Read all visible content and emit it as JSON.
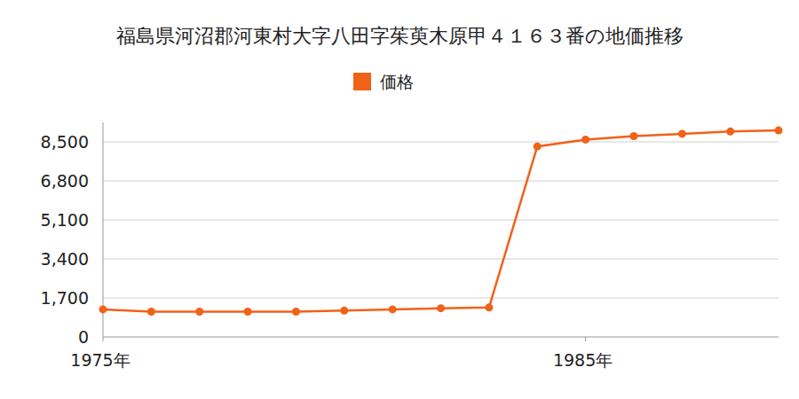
{
  "chart_data": {
    "type": "line",
    "title": "福島県河沼郡河東村大字八田字茱萸木原甲４１６３番の地価推移",
    "x": [
      1975,
      1976,
      1977,
      1978,
      1979,
      1980,
      1981,
      1982,
      1983,
      1984,
      1985,
      1986,
      1987,
      1988,
      1989
    ],
    "series": [
      {
        "name": "価格",
        "color": "#f26118",
        "marker": "circle",
        "values": [
          1200,
          1100,
          1100,
          1100,
          1100,
          1150,
          1200,
          1250,
          1280,
          8300,
          8600,
          8750,
          8850,
          8950,
          9000
        ]
      }
    ],
    "xlim": [
      1975,
      1989
    ],
    "xticks": [
      {
        "value": 1975,
        "label": "1975年"
      },
      {
        "value": 1985,
        "label": "1985年"
      }
    ],
    "ylim": [
      0,
      9350
    ],
    "yticks": [
      0,
      {
        "value": 1700,
        "label": "1,700"
      },
      {
        "value": 3400,
        "label": "3,400"
      },
      {
        "value": 5100,
        "label": "5,100"
      },
      {
        "value": 6800,
        "label": "6,800"
      },
      {
        "value": 8500,
        "label": "8,500"
      }
    ],
    "grid": true,
    "legend": "top"
  }
}
